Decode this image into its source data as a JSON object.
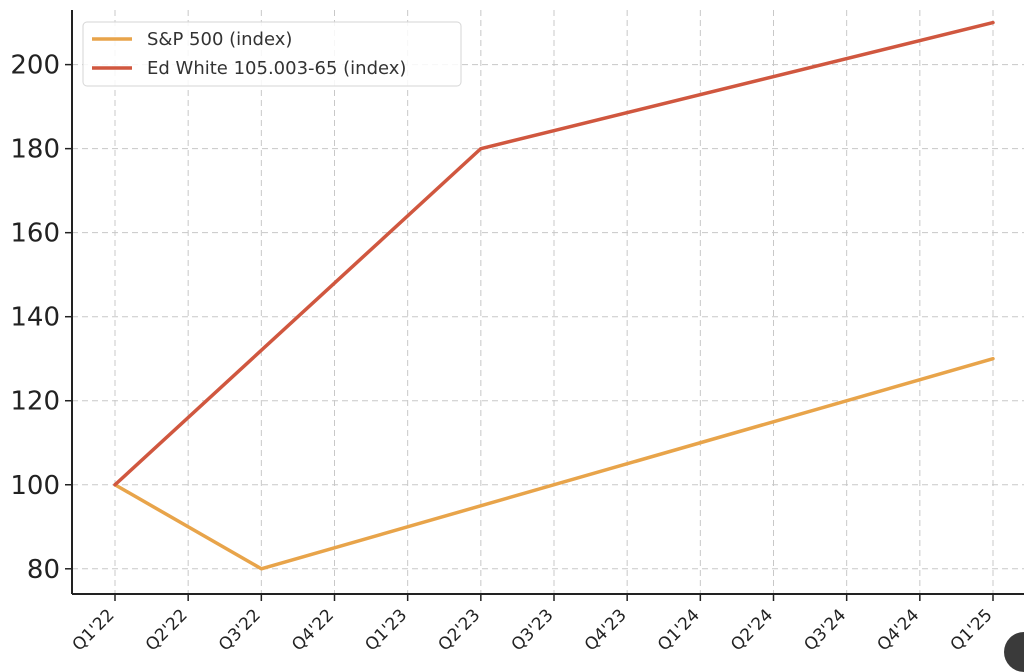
{
  "chart_data": {
    "type": "line",
    "title": "",
    "xlabel": "",
    "ylabel": "",
    "categories": [
      "Q1'22",
      "Q2'22",
      "Q3'22",
      "Q4'22",
      "Q1'23",
      "Q2'23",
      "Q3'23",
      "Q4'23",
      "Q1'24",
      "Q2'24",
      "Q3'24",
      "Q4'24",
      "Q1'25"
    ],
    "x_positions": [
      0,
      1,
      2,
      3,
      4,
      5,
      6,
      7,
      8,
      9,
      10,
      11,
      12
    ],
    "ylim": [
      74,
      213
    ],
    "y_ticks": [
      80,
      100,
      120,
      140,
      160,
      180,
      200
    ],
    "grid": true,
    "legend_placement": "top-left",
    "series": [
      {
        "name": "S&P 500 (index)",
        "color": "#e8a44a",
        "points": [
          [
            0,
            100
          ],
          [
            2,
            80
          ],
          [
            12,
            130
          ]
        ]
      },
      {
        "name": "Ed White 105.003-65 (index)",
        "color": "#d0573f",
        "points": [
          [
            0,
            100
          ],
          [
            5,
            180
          ],
          [
            12,
            210
          ]
        ]
      }
    ]
  }
}
